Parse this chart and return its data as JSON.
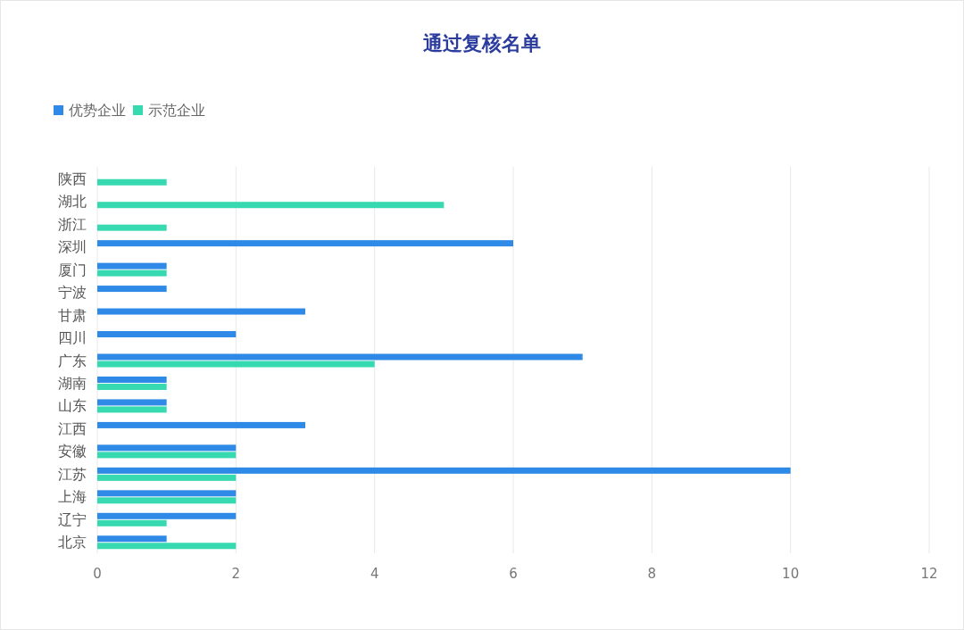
{
  "chart_data": {
    "type": "bar",
    "orientation": "horizontal",
    "title": "通过复核名单",
    "categories": [
      "陕西",
      "湖北",
      "浙江",
      "深圳",
      "厦门",
      "宁波",
      "甘肃",
      "四川",
      "广东",
      "湖南",
      "山东",
      "江西",
      "安徽",
      "江苏",
      "上海",
      "辽宁",
      "北京"
    ],
    "series": [
      {
        "name": "优势企业",
        "color": "#2e8ae6",
        "values": [
          null,
          null,
          null,
          6,
          1,
          1,
          3,
          2,
          7,
          1,
          1,
          3,
          2,
          10,
          2,
          2,
          1
        ]
      },
      {
        "name": "示范企业",
        "color": "#36d9b0",
        "values": [
          1,
          5,
          1,
          null,
          1,
          null,
          null,
          null,
          4,
          1,
          1,
          null,
          2,
          2,
          2,
          1,
          2
        ]
      }
    ],
    "xlim": [
      0,
      12
    ],
    "xticks": [
      0,
      2,
      4,
      6,
      8,
      10,
      12
    ],
    "grid": "x",
    "legend": "top left"
  }
}
